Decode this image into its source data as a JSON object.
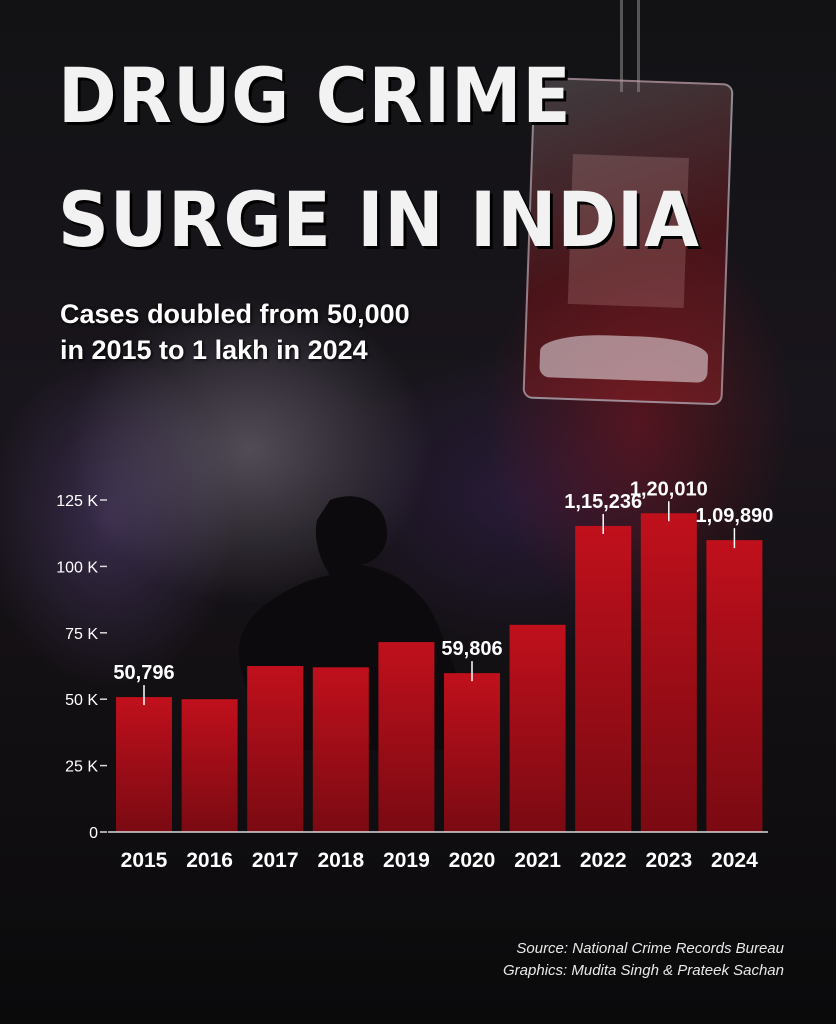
{
  "headline": {
    "line1": "DRUG CRIME",
    "line2": "SURGE IN INDIA",
    "subtitle_line1": "Cases doubled from 50,000",
    "subtitle_line2": "in 2015 to 1 lakh in 2024"
  },
  "footer": {
    "source": "Source: National Crime Records Bureau",
    "graphics": "Graphics: Mudita Singh & Prateek Sachan"
  },
  "colors": {
    "bar": "#c0101c",
    "bar_dark": "#7a0a12",
    "text": "#ffffff",
    "axis": "#d9d9d9"
  },
  "chart_data": {
    "type": "bar",
    "categories": [
      "2015",
      "2016",
      "2017",
      "2018",
      "2019",
      "2020",
      "2021",
      "2022",
      "2023",
      "2024"
    ],
    "values": [
      50796,
      50000,
      62500,
      62000,
      71500,
      59806,
      78000,
      115236,
      120010,
      109890
    ],
    "data_labels": [
      "50,796",
      "",
      "",
      "",
      "",
      "59,806",
      "",
      "1,15,236",
      "1,20,010",
      "1,09,890"
    ],
    "yticks": [
      0,
      25000,
      50000,
      75000,
      100000,
      125000
    ],
    "ytick_labels": [
      "0",
      "25 K",
      "50 K",
      "75 K",
      "100 K",
      "125 K"
    ],
    "ylim": [
      0,
      125000
    ],
    "title": "",
    "xlabel": "",
    "ylabel": "",
    "grid": false,
    "legend": "none"
  }
}
